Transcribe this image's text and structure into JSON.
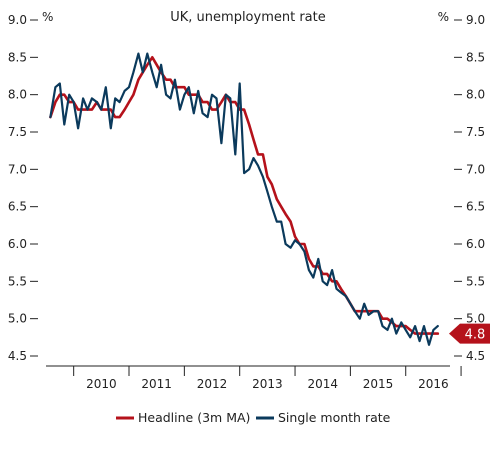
{
  "chart_data": {
    "type": "line",
    "title": "UK, unemployment rate",
    "ylabel_left": "%",
    "ylabel_right": "%",
    "ylim": [
      4.5,
      9.0
    ],
    "yticks": [
      "9.0",
      "8.5",
      "8.0",
      "7.5",
      "7.0",
      "6.5",
      "6.0",
      "5.5",
      "5.0",
      "4.5"
    ],
    "xlim": [
      2009.5,
      2016.8
    ],
    "xticks": [
      "2010",
      "2011",
      "2012",
      "2013",
      "2014",
      "2015",
      "2016"
    ],
    "grid": false,
    "legend_position": "bottom",
    "colors": {
      "headline": "#b5121b",
      "single": "#0b3a5c"
    },
    "callout": {
      "label": "4.8",
      "value": 4.8
    },
    "series": [
      {
        "name": "Headline (3m MA)",
        "x": [
          2009.58,
          2009.67,
          2009.75,
          2009.83,
          2009.92,
          2010.0,
          2010.08,
          2010.17,
          2010.25,
          2010.33,
          2010.42,
          2010.5,
          2010.58,
          2010.67,
          2010.75,
          2010.83,
          2010.92,
          2011.0,
          2011.08,
          2011.17,
          2011.25,
          2011.33,
          2011.42,
          2011.5,
          2011.58,
          2011.67,
          2011.75,
          2011.83,
          2011.92,
          2012.0,
          2012.08,
          2012.17,
          2012.25,
          2012.33,
          2012.42,
          2012.5,
          2012.58,
          2012.67,
          2012.75,
          2012.83,
          2012.92,
          2013.0,
          2013.08,
          2013.17,
          2013.25,
          2013.33,
          2013.42,
          2013.5,
          2013.58,
          2013.67,
          2013.75,
          2013.83,
          2013.92,
          2014.0,
          2014.08,
          2014.17,
          2014.25,
          2014.33,
          2014.42,
          2014.5,
          2014.58,
          2014.67,
          2014.75,
          2014.83,
          2014.92,
          2015.0,
          2015.08,
          2015.17,
          2015.25,
          2015.33,
          2015.42,
          2015.5,
          2015.58,
          2015.67,
          2015.75,
          2015.83,
          2015.92,
          2016.0,
          2016.08,
          2016.17,
          2016.25,
          2016.33,
          2016.42,
          2016.5,
          2016.58
        ],
        "y": [
          7.7,
          7.9,
          8.0,
          8.0,
          7.9,
          7.9,
          7.8,
          7.8,
          7.8,
          7.8,
          7.9,
          7.8,
          7.8,
          7.8,
          7.7,
          7.7,
          7.8,
          7.9,
          8.0,
          8.2,
          8.3,
          8.4,
          8.5,
          8.4,
          8.3,
          8.2,
          8.2,
          8.1,
          8.1,
          8.1,
          8.0,
          8.0,
          8.0,
          7.9,
          7.9,
          7.8,
          7.8,
          7.9,
          8.0,
          7.9,
          7.9,
          7.8,
          7.8,
          7.6,
          7.4,
          7.2,
          7.2,
          6.9,
          6.8,
          6.6,
          6.5,
          6.4,
          6.3,
          6.1,
          6.0,
          6.0,
          5.8,
          5.7,
          5.7,
          5.6,
          5.6,
          5.5,
          5.5,
          5.4,
          5.3,
          5.2,
          5.1,
          5.1,
          5.1,
          5.1,
          5.1,
          5.1,
          5.0,
          5.0,
          4.95,
          4.9,
          4.9,
          4.9,
          4.85,
          4.8,
          4.8,
          4.8,
          4.8,
          4.8,
          4.8
        ]
      },
      {
        "name": "Single month rate",
        "x": [
          2009.58,
          2009.67,
          2009.75,
          2009.83,
          2009.92,
          2010.0,
          2010.08,
          2010.17,
          2010.25,
          2010.33,
          2010.42,
          2010.5,
          2010.58,
          2010.67,
          2010.75,
          2010.83,
          2010.92,
          2011.0,
          2011.08,
          2011.17,
          2011.25,
          2011.33,
          2011.42,
          2011.5,
          2011.58,
          2011.67,
          2011.75,
          2011.83,
          2011.92,
          2012.0,
          2012.08,
          2012.17,
          2012.25,
          2012.33,
          2012.42,
          2012.5,
          2012.58,
          2012.67,
          2012.75,
          2012.83,
          2012.92,
          2013.0,
          2013.08,
          2013.17,
          2013.25,
          2013.33,
          2013.42,
          2013.5,
          2013.58,
          2013.67,
          2013.75,
          2013.83,
          2013.92,
          2014.0,
          2014.08,
          2014.17,
          2014.25,
          2014.33,
          2014.42,
          2014.5,
          2014.58,
          2014.67,
          2014.75,
          2014.83,
          2014.92,
          2015.0,
          2015.08,
          2015.17,
          2015.25,
          2015.33,
          2015.42,
          2015.5,
          2015.58,
          2015.67,
          2015.75,
          2015.83,
          2015.92,
          2016.0,
          2016.08,
          2016.17,
          2016.25,
          2016.33,
          2016.42,
          2016.5,
          2016.58
        ],
        "y": [
          7.7,
          8.1,
          8.15,
          7.6,
          8.0,
          7.9,
          7.55,
          7.95,
          7.8,
          7.95,
          7.9,
          7.8,
          8.1,
          7.55,
          7.95,
          7.9,
          8.05,
          8.1,
          8.3,
          8.55,
          8.3,
          8.55,
          8.3,
          8.1,
          8.4,
          8.0,
          7.95,
          8.2,
          7.8,
          8.0,
          8.1,
          7.75,
          8.05,
          7.75,
          7.7,
          8.0,
          7.95,
          7.35,
          8.0,
          7.95,
          7.2,
          8.15,
          6.95,
          7.0,
          7.15,
          7.05,
          6.9,
          6.7,
          6.5,
          6.3,
          6.3,
          6.0,
          5.95,
          6.05,
          6.0,
          5.9,
          5.65,
          5.55,
          5.8,
          5.5,
          5.45,
          5.65,
          5.4,
          5.35,
          5.3,
          5.2,
          5.1,
          5.0,
          5.2,
          5.05,
          5.1,
          5.1,
          4.9,
          4.85,
          5.0,
          4.8,
          4.95,
          4.85,
          4.75,
          4.9,
          4.7,
          4.9,
          4.65,
          4.85,
          4.9
        ]
      }
    ]
  }
}
